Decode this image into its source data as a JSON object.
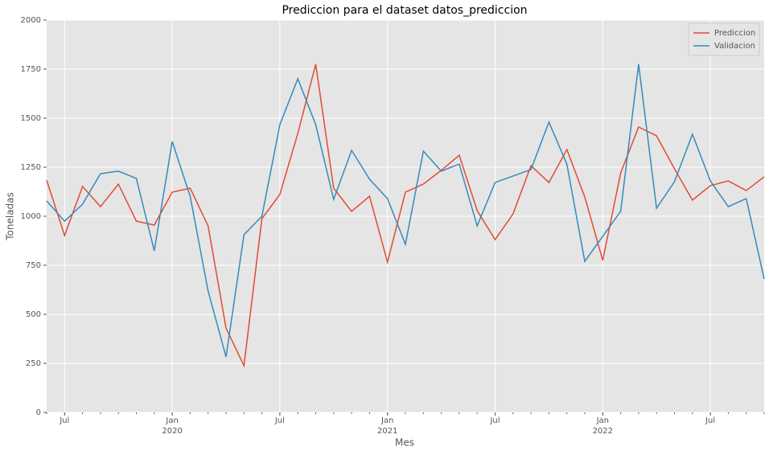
{
  "chart_data": {
    "type": "line",
    "title": "Prediccion para el dataset datos_prediccion",
    "xlabel": "Mes",
    "ylabel": "Toneladas",
    "x": [
      "2019-06",
      "2019-07",
      "2019-08",
      "2019-09",
      "2019-10",
      "2019-11",
      "2019-12",
      "2020-01",
      "2020-02",
      "2020-03",
      "2020-04",
      "2020-05",
      "2020-06",
      "2020-07",
      "2020-08",
      "2020-09",
      "2020-10",
      "2020-11",
      "2020-12",
      "2021-01",
      "2021-02",
      "2021-03",
      "2021-04",
      "2021-05",
      "2021-06",
      "2021-07",
      "2021-08",
      "2021-09",
      "2021-10",
      "2021-11",
      "2021-12",
      "2022-01",
      "2022-02",
      "2022-03",
      "2022-04",
      "2022-05",
      "2022-06",
      "2022-07",
      "2022-08",
      "2022-09",
      "2022-10"
    ],
    "series": [
      {
        "name": "Prediccion",
        "color": "#e24a33",
        "values": [
          1184,
          902,
          1152,
          1049,
          1164,
          975,
          955,
          1123,
          1143,
          951,
          430,
          238,
          988,
          1111,
          1422,
          1775,
          1143,
          1025,
          1102,
          766,
          1123,
          1164,
          1234,
          1311,
          1029,
          881,
          1012,
          1258,
          1172,
          1340,
          1098,
          775,
          1221,
          1455,
          1410,
          1242,
          1082,
          1156,
          1180,
          1131,
          1201
        ]
      },
      {
        "name": "Validacion",
        "color": "#348abd",
        "values": [
          1078,
          975,
          1061,
          1217,
          1230,
          1193,
          824,
          1381,
          1102,
          619,
          283,
          906,
          1000,
          1467,
          1701,
          1467,
          1086,
          1336,
          1189,
          1090,
          857,
          1332,
          1230,
          1266,
          951,
          1172,
          1205,
          1238,
          1480,
          1266,
          770,
          898,
          1025,
          1775,
          1041,
          1176,
          1418,
          1180,
          1049,
          1090,
          680
        ]
      }
    ],
    "xlim": [
      "2019-06",
      "2022-10"
    ],
    "xticks": [
      {
        "value": "2019-07",
        "label": "Jul"
      },
      {
        "value": "2020-01",
        "label": "Jan",
        "year": "2020"
      },
      {
        "value": "2020-07",
        "label": "Jul"
      },
      {
        "value": "2021-01",
        "label": "Jan",
        "year": "2021"
      },
      {
        "value": "2021-07",
        "label": "Jul"
      },
      {
        "value": "2022-01",
        "label": "Jan",
        "year": "2022"
      },
      {
        "value": "2022-07",
        "label": "Jul"
      }
    ],
    "ylim": [
      0,
      2000
    ],
    "yticks": [
      0,
      250,
      500,
      750,
      1000,
      1250,
      1500,
      1750,
      2000
    ],
    "grid": true,
    "legend": "upper right",
    "background": "#e5e5e5"
  }
}
